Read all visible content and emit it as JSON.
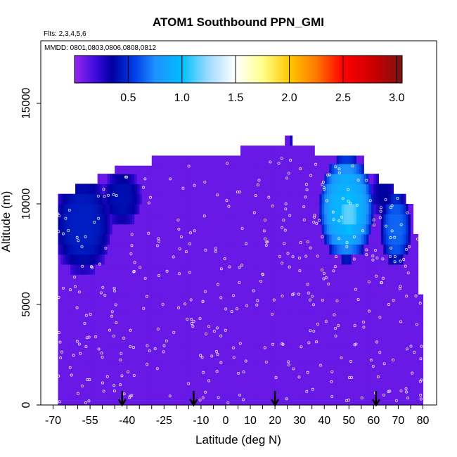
{
  "chart_data": {
    "type": "heatmap",
    "title": "ATOM1 Southbound PPN_GMI",
    "subtitle_flights": "Flts: 2,3,4,5,6",
    "subtitle_dates": "MMDD: 0801,0803,0806,0808,0812",
    "xlabel": "Latitude (deg N)",
    "ylabel": "Altitude (m)",
    "xlim": [
      -70,
      85
    ],
    "ylim": [
      0,
      18000
    ],
    "x_tick_labels": [
      "-70",
      "-55",
      "-40",
      "-25",
      "-10",
      "0",
      "10",
      "20",
      "30",
      "40",
      "50",
      "60",
      "70",
      "80"
    ],
    "x_ticks": [
      -70,
      -65,
      -60,
      -55,
      -50,
      -45,
      -40,
      -35,
      -30,
      -25,
      -20,
      -15,
      -10,
      -5,
      0,
      5,
      10,
      15,
      20,
      25,
      30,
      35,
      40,
      45,
      50,
      55,
      60,
      65,
      70,
      75,
      80
    ],
    "y_ticks": [
      0,
      5000,
      10000,
      15000
    ],
    "y_tick_labels": [
      "0",
      "5000",
      "10000",
      "15000"
    ],
    "colorbar": {
      "range": [
        0,
        3.05
      ],
      "tick_values": [
        0.5,
        1.0,
        1.5,
        2.0,
        2.5,
        3.0
      ],
      "tick_labels": [
        "0.5",
        "1.0",
        "1.5",
        "2.0",
        "2.5",
        "3.0"
      ]
    },
    "arrows_latitude": [
      -42,
      -13,
      20,
      61
    ],
    "background_value": 0.1,
    "column_tops": [
      {
        "lat_from": -68,
        "lat_to": -61,
        "top": 10500
      },
      {
        "lat_from": -61,
        "lat_to": -52,
        "top": 11000
      },
      {
        "lat_from": -52,
        "lat_to": -45,
        "top": 11500
      },
      {
        "lat_from": -45,
        "lat_to": -30,
        "top": 11900
      },
      {
        "lat_from": -30,
        "lat_to": -16,
        "top": 12400
      },
      {
        "lat_from": -16,
        "lat_to": 6,
        "top": 12400
      },
      {
        "lat_from": 6,
        "lat_to": 24,
        "top": 12900
      },
      {
        "lat_from": 24,
        "lat_to": 27,
        "top": 13400
      },
      {
        "lat_from": 27,
        "lat_to": 36,
        "top": 12900
      },
      {
        "lat_from": 36,
        "lat_to": 56,
        "top": 12400
      },
      {
        "lat_from": 56,
        "lat_to": 62,
        "top": 11500
      },
      {
        "lat_from": 62,
        "lat_to": 68,
        "top": 11000
      },
      {
        "lat_from": 68,
        "lat_to": 73,
        "top": 10500
      },
      {
        "lat_from": 73,
        "lat_to": 76,
        "top": 10000
      },
      {
        "lat_from": 76,
        "lat_to": 78,
        "top": 8500
      },
      {
        "lat_from": 78,
        "lat_to": 80,
        "top": 5500
      }
    ],
    "blobs": [
      {
        "lat": -58,
        "alt": 9000,
        "lat_radius": 12,
        "alt_radius": 2500,
        "peak": 0.45
      },
      {
        "lat": -42,
        "alt": 10300,
        "lat_radius": 8,
        "alt_radius": 1400,
        "peak": 0.4
      },
      {
        "lat": 49,
        "alt": 9800,
        "lat_radius": 11,
        "alt_radius": 2600,
        "peak": 0.95
      },
      {
        "lat": 50,
        "alt": 9500,
        "lat_radius": 5,
        "alt_radius": 1100,
        "peak": 1.15
      },
      {
        "lat": 69,
        "alt": 8800,
        "lat_radius": 6,
        "alt_radius": 1800,
        "peak": 0.65
      },
      {
        "lat": 64,
        "alt": 10500,
        "lat_radius": 5,
        "alt_radius": 1200,
        "peak": 0.35
      }
    ]
  }
}
